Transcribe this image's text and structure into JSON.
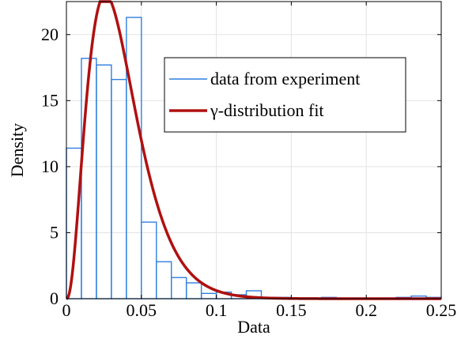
{
  "chart_data": {
    "type": "bar",
    "title": "",
    "xlabel": "Data",
    "ylabel": "Density",
    "xlim": [
      0,
      0.25
    ],
    "ylim": [
      0,
      22.5
    ],
    "x_ticks": [
      0,
      0.05,
      0.1,
      0.15,
      0.2,
      0.25
    ],
    "x_tick_labels": [
      "0",
      "0.05",
      "0.1",
      "0.15",
      "0.2",
      "0.25"
    ],
    "y_ticks": [
      0,
      5,
      10,
      15,
      20
    ],
    "y_tick_labels": [
      "0",
      "5",
      "10",
      "15",
      "20"
    ],
    "grid": true,
    "legend_position": "top-right",
    "series": [
      {
        "name": "data from experiment",
        "kind": "histogram",
        "color": "#2f7fe0",
        "bin_edges": [
          0.0,
          0.01,
          0.02,
          0.03,
          0.04,
          0.05,
          0.06,
          0.07,
          0.08,
          0.09,
          0.1,
          0.11,
          0.12,
          0.13,
          0.14,
          0.15,
          0.16,
          0.17,
          0.18,
          0.19,
          0.2,
          0.21,
          0.22,
          0.23,
          0.24,
          0.25
        ],
        "values": [
          11.4,
          18.2,
          17.7,
          16.6,
          21.3,
          5.8,
          2.8,
          1.6,
          1.2,
          0.4,
          0.5,
          0.3,
          0.6,
          0.1,
          0.1,
          0.05,
          0.05,
          0.1,
          0.05,
          0.05,
          0.05,
          0.05,
          0.1,
          0.2,
          0.1
        ]
      },
      {
        "name": "γ-distribution fit",
        "kind": "line",
        "color": "#b01010",
        "shape": 3.4,
        "scale": 0.0108
      }
    ]
  }
}
